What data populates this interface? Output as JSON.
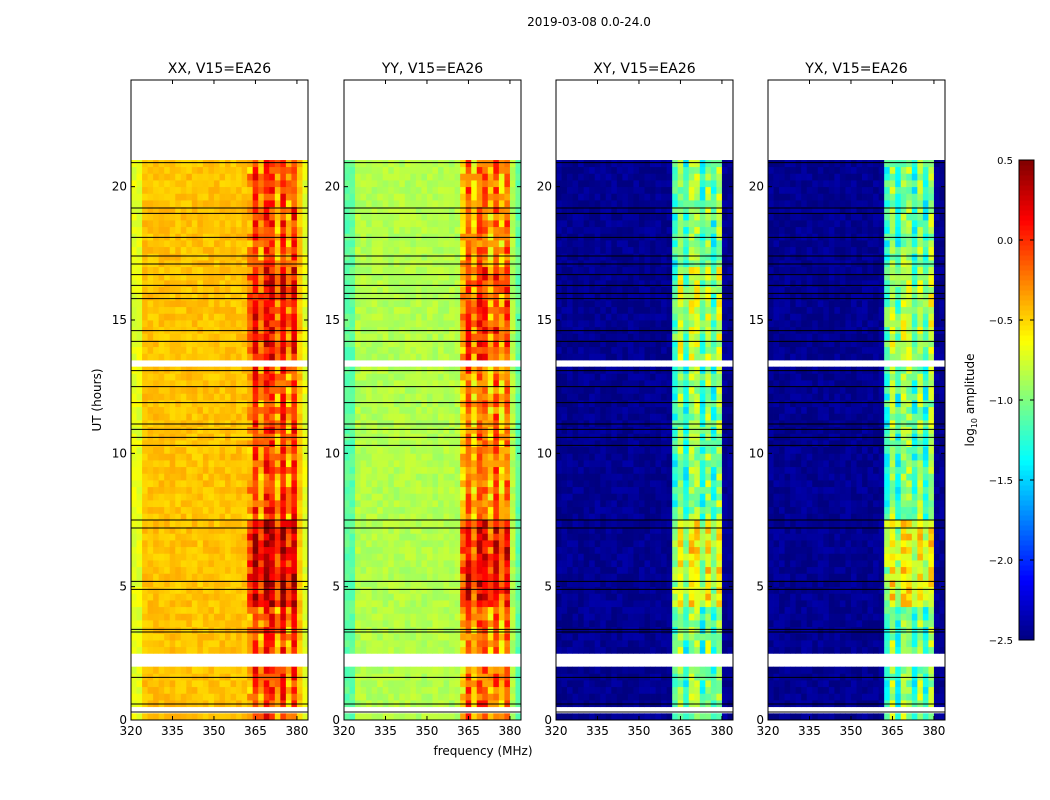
{
  "chart_data": {
    "type": "heatmap",
    "title": "2019-03-08 0.0-24.0",
    "xlabel": "frequency (MHz)",
    "ylabel": "UT (hours)",
    "xlim": [
      320,
      384
    ],
    "ylim": [
      0,
      24
    ],
    "xticks": [
      "320",
      "335",
      "350",
      "365",
      "380"
    ],
    "xtick_values": [
      320,
      335,
      350,
      365,
      380
    ],
    "yticks": [
      "0",
      "5",
      "10",
      "15",
      "20"
    ],
    "ytick_values": [
      0,
      5,
      10,
      15,
      20
    ],
    "data_time_range": [
      0,
      21
    ],
    "rfi_band_mhz": [
      362,
      380
    ],
    "flagged_hours": [
      [
        21,
        24
      ],
      [
        2.05,
        2.6
      ],
      [
        3.9,
        4.05
      ],
      [
        0.35,
        0.5
      ],
      [
        13.25,
        13.4
      ],
      [
        12.45,
        12.55
      ],
      [
        7.45,
        7.55
      ]
    ],
    "flag_line_hours": [
      0.3,
      0.6,
      1.6,
      3.3,
      3.4,
      4.9,
      5.2,
      7.2,
      7.5,
      10.3,
      10.6,
      10.9,
      11.1,
      11.9,
      12.5,
      13.1,
      14.2,
      14.6,
      15.8,
      16.0,
      16.3,
      16.7,
      17.1,
      17.4,
      18.1,
      19.0,
      19.2,
      20.9
    ],
    "panels": [
      {
        "title": "XX, V15=EA26",
        "background_log_amp": -0.45,
        "band_log_amp": 0.0
      },
      {
        "title": "YY, V15=EA26",
        "background_log_amp": -0.85,
        "band_log_amp": -0.15
      },
      {
        "title": "XY, V15=EA26",
        "background_log_amp": -2.45,
        "band_log_amp": -0.9
      },
      {
        "title": "YX, V15=EA26",
        "background_log_amp": -2.45,
        "band_log_amp": -0.9
      }
    ],
    "colorbar": {
      "label": "log10 amplitude",
      "label_main": "log",
      "label_sub": "10",
      "label_rest": " amplitude",
      "range": [
        -2.5,
        0.5
      ],
      "colormap": "jet",
      "ticks": [
        "0.5",
        "0.0",
        "−0.5",
        "−1.0",
        "−1.5",
        "−2.0",
        "−2.5"
      ],
      "tick_values": [
        0.5,
        0.0,
        -0.5,
        -1.0,
        -1.5,
        -2.0,
        -2.5
      ]
    }
  }
}
